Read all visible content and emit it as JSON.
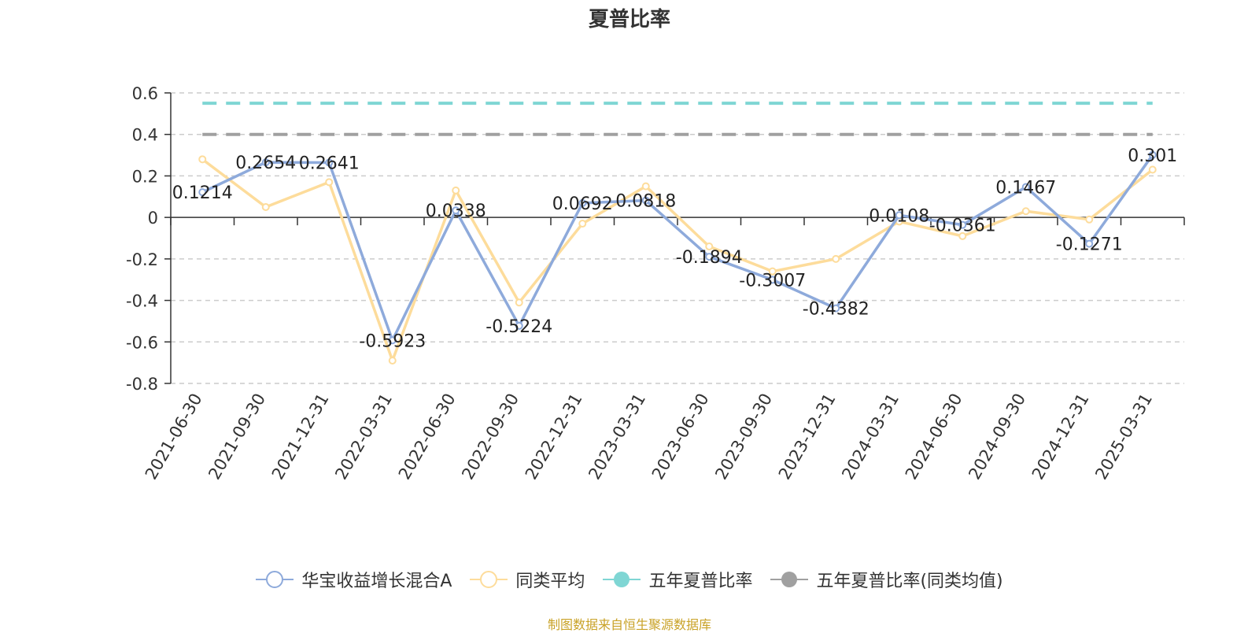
{
  "chart_data": {
    "type": "line",
    "title": "夏普比率",
    "categories": [
      "2021-06-30",
      "2021-09-30",
      "2021-12-31",
      "2022-03-31",
      "2022-06-30",
      "2022-09-30",
      "2022-12-31",
      "2023-03-31",
      "2023-06-30",
      "2023-09-30",
      "2023-12-31",
      "2024-03-31",
      "2024-06-30",
      "2024-09-30",
      "2024-12-31",
      "2025-03-31"
    ],
    "series": [
      {
        "name": "华宝收益增长混合A",
        "color": "#8eaadb",
        "values": [
          0.1214,
          0.2654,
          0.2641,
          -0.5923,
          0.0338,
          -0.5224,
          0.0692,
          0.0818,
          -0.1894,
          -0.3007,
          -0.4382,
          0.0108,
          -0.0361,
          0.1467,
          -0.1271,
          0.301
        ],
        "labels": [
          "0.1214",
          "0.2654",
          "0.2641",
          "-0.5923",
          "0.0338",
          "-0.5224",
          "0.0692",
          "0.0818",
          "-0.1894",
          "-0.3007",
          "-0.4382",
          "0.0108",
          "-0.0361",
          "0.1467",
          "-0.1271",
          "0.301"
        ]
      },
      {
        "name": "同类平均",
        "color": "#fddc9b",
        "values": [
          0.28,
          0.05,
          0.17,
          -0.69,
          0.13,
          -0.41,
          -0.03,
          0.15,
          -0.14,
          -0.26,
          -0.2,
          -0.02,
          -0.09,
          0.03,
          -0.01,
          0.23
        ]
      },
      {
        "name": "五年夏普比率",
        "color": "#7fd6d4",
        "constant": 0.55
      },
      {
        "name": "五年夏普比率(同类均值)",
        "color": "#a0a0a0",
        "constant": 0.4
      }
    ],
    "yticks": [
      "0.6",
      "0.4",
      "0.2",
      "0",
      "-0.2",
      "-0.4",
      "-0.6",
      "-0.8"
    ],
    "ylim": [
      -0.8,
      0.6
    ],
    "grid": true,
    "legend_position": "bottom"
  },
  "source": "制图数据来自恒生聚源数据库"
}
